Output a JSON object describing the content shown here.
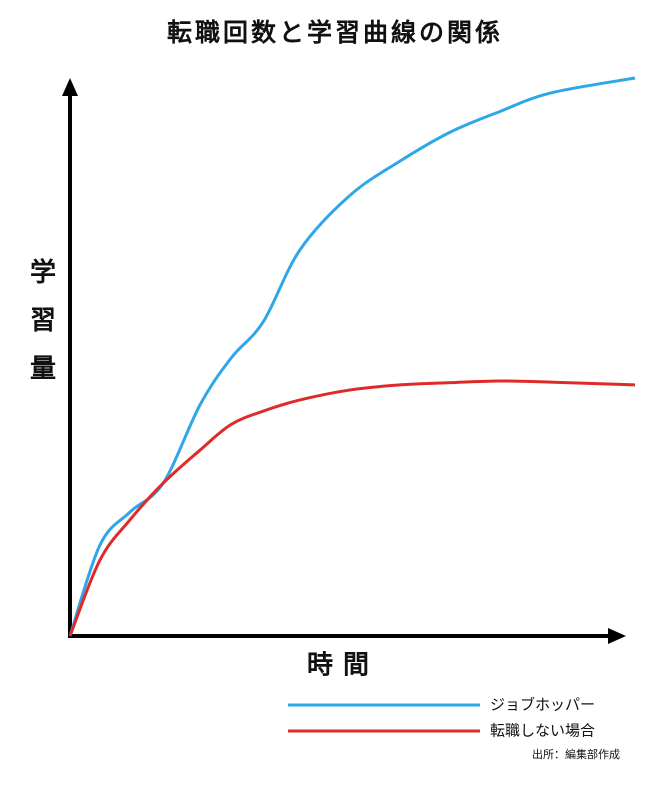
{
  "chart_data": {
    "type": "line",
    "title": "転職回数と学習曲線の関係",
    "x_label": "時間",
    "y_label": "学習量",
    "source": "出所：編集部作成",
    "xlim": [
      0,
      100
    ],
    "ylim": [
      0,
      100
    ],
    "x": [
      0,
      5.3,
      10.6,
      16.5,
      23,
      28.5,
      34.2,
      40.7,
      49.6,
      58.4,
      67.3,
      76.1,
      85,
      100
    ],
    "series": [
      {
        "name": "ジョブホッパー",
        "color": "#2ea7e8",
        "values": [
          0,
          16.3,
          22.2,
          27.4,
          41.4,
          49.8,
          56.3,
          69.2,
          79,
          85.1,
          90.3,
          94,
          97.3,
          100
        ]
      },
      {
        "name": "転職しない場合",
        "color": "#e02a2a",
        "values": [
          0,
          13.6,
          20.8,
          27.4,
          33.3,
          37.9,
          40.3,
          42.3,
          44.1,
          45,
          45.4,
          45.7,
          45.5,
          45
        ]
      }
    ]
  }
}
